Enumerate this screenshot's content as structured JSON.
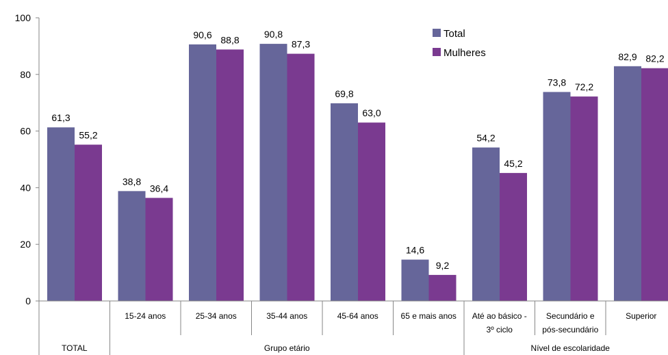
{
  "chart_data": {
    "type": "bar",
    "categories": [
      [
        "TOTAL"
      ],
      [
        "15-24 anos"
      ],
      [
        "25-34 anos"
      ],
      [
        "35-44 anos"
      ],
      [
        "45-64 anos"
      ],
      [
        "65 e mais anos"
      ],
      [
        "Até ao básico -",
        "3º ciclo"
      ],
      [
        "Secundário e",
        "pós-secundário"
      ],
      [
        "Superior"
      ]
    ],
    "category_text": [
      "",
      "15-24 anos",
      "25-34 anos",
      "35-44 anos",
      "45-64 anos",
      "65 e mais anos",
      "Até ao básico - 3º ciclo",
      "Secundário e pós-secundário",
      "Superior"
    ],
    "groups": [
      {
        "label": "TOTAL",
        "span": [
          0,
          0
        ]
      },
      {
        "label": "Grupo etário",
        "span": [
          1,
          5
        ]
      },
      {
        "label": "Nível de escolaridade",
        "span": [
          6,
          8
        ]
      }
    ],
    "series": [
      {
        "name": "Total",
        "color": "#66669a",
        "values": [
          61.3,
          38.8,
          90.6,
          90.8,
          69.8,
          14.6,
          54.2,
          73.8,
          82.9
        ],
        "labels": [
          "61,3",
          "38,8",
          "90,6",
          "90,8",
          "69,8",
          "14,6",
          "54,2",
          "73,8",
          "82,9"
        ]
      },
      {
        "name": "Mulheres",
        "color": "#7a3a90",
        "values": [
          55.2,
          36.4,
          88.8,
          87.3,
          63.0,
          9.2,
          45.2,
          72.2,
          82.2
        ],
        "labels": [
          "55,2",
          "36,4",
          "88,8",
          "87,3",
          "63,0",
          "9,2",
          "45,2",
          "72,2",
          "82,2"
        ]
      }
    ],
    "ylim": [
      0,
      100
    ],
    "yticks": [
      0,
      20,
      40,
      60,
      80,
      100
    ],
    "grid": false,
    "legend": "top-right"
  }
}
